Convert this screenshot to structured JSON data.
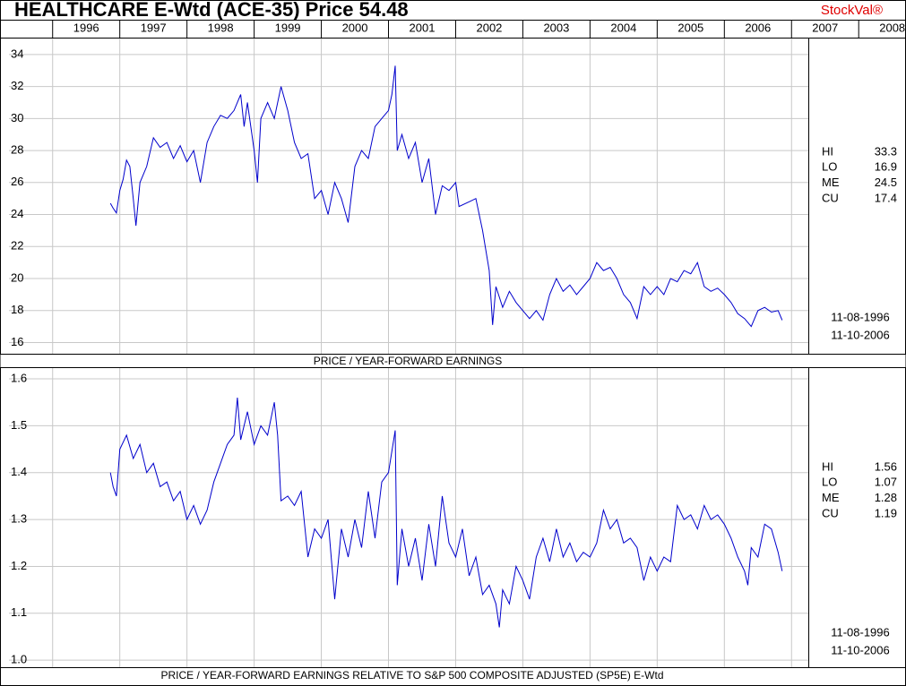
{
  "header": {
    "title": "HEALTHCARE E-Wtd (ACE-35)  Price 54.48",
    "brand": "StockVal®"
  },
  "chart_data": [
    {
      "type": "line",
      "title": "PRICE / YEAR-FORWARD EARNINGS",
      "xlim": [
        1995.35,
        2007.25
      ],
      "xticks": [
        1996,
        1997,
        1998,
        1999,
        2000,
        2001,
        2002,
        2003,
        2004,
        2005,
        2006,
        2007,
        2008
      ],
      "ylim": [
        15.3,
        35
      ],
      "yticks": [
        16,
        18,
        20,
        22,
        24,
        26,
        28,
        30,
        32,
        34
      ],
      "grid": true,
      "series": [
        {
          "color": "#0000cc",
          "x": [
            1996.86,
            1996.9,
            1996.95,
            1997.0,
            1997.05,
            1997.1,
            1997.15,
            1997.2,
            1997.24,
            1997.3,
            1997.4,
            1997.5,
            1997.6,
            1997.7,
            1997.8,
            1997.9,
            1998.0,
            1998.1,
            1998.2,
            1998.3,
            1998.4,
            1998.5,
            1998.6,
            1998.7,
            1998.8,
            1998.85,
            1998.9,
            1999.0,
            1999.05,
            1999.1,
            1999.2,
            1999.3,
            1999.4,
            1999.5,
            1999.6,
            1999.7,
            1999.8,
            1999.9,
            2000.0,
            2000.1,
            2000.2,
            2000.3,
            2000.4,
            2000.5,
            2000.6,
            2000.7,
            2000.8,
            2000.9,
            2001.0,
            2001.05,
            2001.1,
            2001.13,
            2001.2,
            2001.3,
            2001.4,
            2001.5,
            2001.6,
            2001.7,
            2001.8,
            2001.9,
            2002.0,
            2002.05,
            2002.2,
            2002.3,
            2002.4,
            2002.5,
            2002.55,
            2002.6,
            2002.7,
            2002.8,
            2002.9,
            2003.0,
            2003.1,
            2003.2,
            2003.3,
            2003.4,
            2003.5,
            2003.6,
            2003.7,
            2003.8,
            2003.9,
            2004.0,
            2004.1,
            2004.2,
            2004.3,
            2004.4,
            2004.5,
            2004.6,
            2004.7,
            2004.8,
            2004.9,
            2005.0,
            2005.1,
            2005.2,
            2005.3,
            2005.4,
            2005.5,
            2005.6,
            2005.7,
            2005.8,
            2005.9,
            2006.0,
            2006.1,
            2006.2,
            2006.3,
            2006.4,
            2006.5,
            2006.6,
            2006.7,
            2006.8,
            2006.86
          ],
          "values": [
            24.7,
            24.4,
            24.1,
            25.5,
            26.2,
            27.4,
            27.0,
            25.0,
            23.3,
            26.0,
            27.0,
            28.8,
            28.2,
            28.5,
            27.5,
            28.3,
            27.3,
            28.0,
            26.0,
            28.5,
            29.5,
            30.2,
            30.0,
            30.5,
            31.5,
            29.5,
            31.0,
            28.0,
            26.0,
            30.0,
            31.0,
            30.0,
            32.0,
            30.5,
            28.5,
            27.5,
            27.8,
            25.0,
            25.5,
            24.0,
            26.0,
            25.0,
            23.5,
            27.0,
            28.0,
            27.5,
            29.5,
            30.0,
            30.5,
            31.5,
            33.3,
            28.0,
            29.0,
            27.5,
            28.5,
            26.0,
            27.5,
            24.0,
            25.8,
            25.5,
            26.0,
            24.5,
            24.8,
            25.0,
            23.0,
            20.5,
            17.1,
            19.5,
            18.2,
            19.2,
            18.5,
            18.0,
            17.5,
            18.0,
            17.4,
            19.0,
            20.0,
            19.2,
            19.6,
            19.0,
            19.5,
            20.0,
            21.0,
            20.5,
            20.7,
            20.0,
            19.0,
            18.5,
            17.5,
            19.5,
            19.0,
            19.5,
            19.0,
            20.0,
            19.8,
            20.5,
            20.3,
            21.0,
            19.5,
            19.2,
            19.4,
            19.0,
            18.5,
            17.8,
            17.5,
            17.0,
            18.0,
            18.2,
            17.9,
            18.0,
            17.4
          ]
        }
      ],
      "stats": {
        "labels": [
          "HI",
          "LO",
          "ME",
          "CU"
        ],
        "values": [
          33.3,
          16.9,
          24.5,
          17.4
        ],
        "dates": [
          "11-08-1996",
          "11-10-2006"
        ]
      }
    },
    {
      "type": "line",
      "title": "PRICE / YEAR-FORWARD EARNINGS RELATIVE TO S&P 500 COMPOSITE ADJUSTED (SP5E) E-Wtd",
      "xlim": [
        1995.35,
        2007.25
      ],
      "ylim": [
        0.985,
        1.623
      ],
      "yticks": [
        {
          "value": 1,
          "label": "1.0"
        },
        1.1,
        1.2,
        1.3,
        1.4,
        1.5,
        1.6
      ],
      "grid": true,
      "series": [
        {
          "color": "#0000cc",
          "x": [
            1996.86,
            1996.9,
            1996.95,
            1997.0,
            1997.1,
            1997.2,
            1997.3,
            1997.4,
            1997.5,
            1997.6,
            1997.7,
            1997.8,
            1997.9,
            1998.0,
            1998.1,
            1998.2,
            1998.3,
            1998.4,
            1998.5,
            1998.6,
            1998.7,
            1998.75,
            1998.8,
            1998.9,
            1999.0,
            1999.1,
            1999.2,
            1999.3,
            1999.35,
            1999.4,
            1999.5,
            1999.6,
            1999.7,
            1999.8,
            1999.9,
            2000.0,
            2000.1,
            2000.2,
            2000.3,
            2000.4,
            2000.5,
            2000.6,
            2000.7,
            2000.8,
            2000.9,
            2001.0,
            2001.1,
            2001.13,
            2001.2,
            2001.3,
            2001.4,
            2001.5,
            2001.6,
            2001.7,
            2001.8,
            2001.9,
            2002.0,
            2002.1,
            2002.2,
            2002.3,
            2002.4,
            2002.5,
            2002.6,
            2002.65,
            2002.7,
            2002.8,
            2002.9,
            2003.0,
            2003.1,
            2003.2,
            2003.3,
            2003.4,
            2003.5,
            2003.6,
            2003.7,
            2003.8,
            2003.9,
            2004.0,
            2004.1,
            2004.2,
            2004.3,
            2004.4,
            2004.5,
            2004.6,
            2004.7,
            2004.8,
            2004.9,
            2005.0,
            2005.1,
            2005.2,
            2005.3,
            2005.4,
            2005.5,
            2005.6,
            2005.7,
            2005.8,
            2005.9,
            2006.0,
            2006.1,
            2006.2,
            2006.3,
            2006.35,
            2006.4,
            2006.5,
            2006.6,
            2006.7,
            2006.8,
            2006.86
          ],
          "values": [
            1.4,
            1.37,
            1.35,
            1.45,
            1.48,
            1.43,
            1.46,
            1.4,
            1.42,
            1.37,
            1.38,
            1.34,
            1.36,
            1.3,
            1.33,
            1.29,
            1.32,
            1.38,
            1.42,
            1.46,
            1.48,
            1.56,
            1.47,
            1.53,
            1.46,
            1.5,
            1.48,
            1.55,
            1.48,
            1.34,
            1.35,
            1.33,
            1.36,
            1.22,
            1.28,
            1.26,
            1.3,
            1.13,
            1.28,
            1.22,
            1.3,
            1.24,
            1.36,
            1.26,
            1.38,
            1.4,
            1.49,
            1.16,
            1.28,
            1.2,
            1.26,
            1.17,
            1.29,
            1.2,
            1.35,
            1.25,
            1.22,
            1.28,
            1.18,
            1.22,
            1.14,
            1.16,
            1.12,
            1.07,
            1.15,
            1.12,
            1.2,
            1.17,
            1.13,
            1.22,
            1.26,
            1.21,
            1.28,
            1.22,
            1.25,
            1.21,
            1.23,
            1.22,
            1.25,
            1.32,
            1.28,
            1.3,
            1.25,
            1.26,
            1.24,
            1.17,
            1.22,
            1.19,
            1.22,
            1.21,
            1.33,
            1.3,
            1.31,
            1.28,
            1.33,
            1.3,
            1.31,
            1.29,
            1.26,
            1.22,
            1.19,
            1.16,
            1.24,
            1.22,
            1.29,
            1.28,
            1.23,
            1.19
          ]
        }
      ],
      "stats": {
        "labels": [
          "HI",
          "LO",
          "ME",
          "CU"
        ],
        "values": [
          1.56,
          1.07,
          1.28,
          1.19
        ],
        "dates": [
          "11-08-1996",
          "11-10-2006"
        ]
      }
    }
  ]
}
